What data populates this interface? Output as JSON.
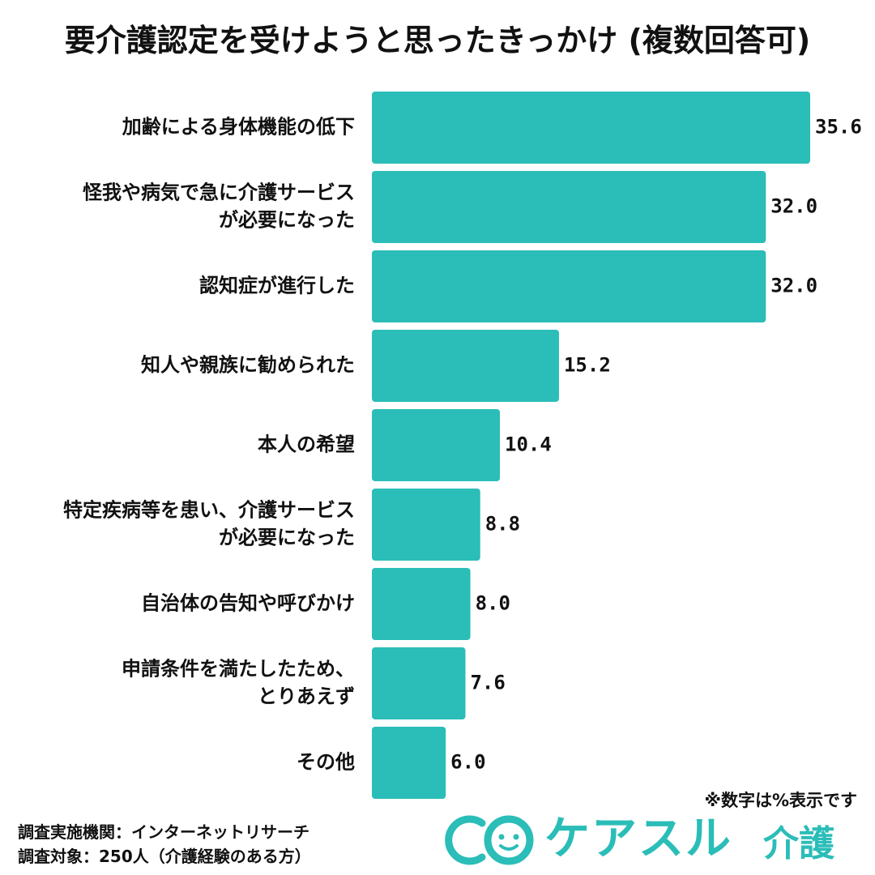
{
  "chart_data": {
    "type": "bar",
    "orientation": "horizontal",
    "title": "要介護認定を受けようと思ったきっかけ (複数回答可)",
    "categories": [
      "加齢による身体機能の低下",
      "怪我や病気で急に介護サービス\nが必要になった",
      "認知症が進行した",
      "知人や親族に勧められた",
      "本人の希望",
      "特定疾病等を患い、介護サービス\nが必要になった",
      "自治体の告知や呼びかけ",
      "申請条件を満たしたため、\nとりあえず",
      "その他"
    ],
    "values": [
      35.6,
      32.0,
      32.0,
      15.2,
      10.4,
      8.8,
      8.0,
      7.6,
      6.0
    ],
    "value_labels": [
      "35.6",
      "32.0",
      "32.0",
      "15.2",
      "10.4",
      "8.8",
      "8.0",
      "7.6",
      "6.0"
    ],
    "xlim": [
      0,
      35.6
    ],
    "bar_color": "#2bbdb8",
    "grid": false,
    "legend": false
  },
  "note": "※数字は%表示です",
  "source_lines": [
    "調査実施機関：インターネットリサーチ",
    "調査対象：250人（介護経験のある方）"
  ],
  "logo": {
    "text": "ケアスル",
    "sub": "介護",
    "color": "#2bbdb8",
    "icon": "smiley-circle-icon"
  }
}
